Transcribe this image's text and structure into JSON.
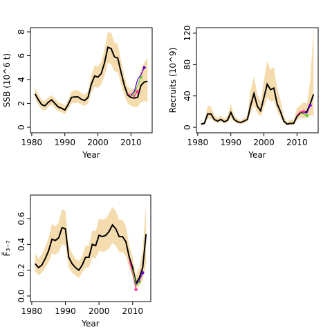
{
  "chart_data": [
    {
      "type": "line",
      "xlabel": "Year",
      "ylabel": "SSB (10^6 t)",
      "x": [
        1981,
        1982,
        1983,
        1984,
        1985,
        1986,
        1987,
        1988,
        1989,
        1990,
        1991,
        1992,
        1993,
        1994,
        1995,
        1996,
        1997,
        1998,
        1999,
        2000,
        2001,
        2002,
        2003,
        2004,
        2005,
        2006,
        2007,
        2008,
        2009,
        2010,
        2011,
        2012,
        2013,
        2014,
        2015
      ],
      "xlim": [
        1979.6,
        2016.4
      ],
      "xticks": [
        1980,
        1990,
        2000,
        2010
      ],
      "ylim": [
        -0.46,
        8.35
      ],
      "yticks": [
        0,
        2,
        4,
        6,
        8
      ],
      "band": {
        "color": "#f5dcae",
        "lower": [
          2.4,
          1.9,
          1.5,
          1.4,
          1.7,
          1.9,
          1.6,
          1.35,
          1.25,
          1.1,
          1.5,
          2.0,
          2.05,
          2.05,
          1.9,
          1.8,
          2.0,
          2.9,
          3.4,
          3.3,
          3.6,
          4.3,
          5.4,
          5.3,
          4.7,
          4.6,
          3.6,
          2.7,
          2.0,
          1.8,
          1.7,
          1.7,
          2.1,
          2.2,
          2.1
        ],
        "upper": [
          3.3,
          2.8,
          2.3,
          2.2,
          2.5,
          2.7,
          2.4,
          2.1,
          2.0,
          1.8,
          2.3,
          3.0,
          3.1,
          3.1,
          2.85,
          2.75,
          3.0,
          4.3,
          5.2,
          5.1,
          5.5,
          6.5,
          8.0,
          7.9,
          7.1,
          7.0,
          5.6,
          4.3,
          3.4,
          3.2,
          3.2,
          3.3,
          4.9,
          5.4,
          5.8
        ]
      },
      "series": [
        {
          "color": "#000000",
          "values": [
            2.8,
            2.3,
            1.9,
            1.8,
            2.1,
            2.3,
            2.0,
            1.7,
            1.6,
            1.45,
            1.9,
            2.5,
            2.55,
            2.55,
            2.35,
            2.25,
            2.5,
            3.6,
            4.3,
            4.2,
            4.5,
            5.4,
            6.7,
            6.6,
            5.9,
            5.8,
            4.6,
            3.5,
            2.7,
            2.5,
            2.45,
            2.5,
            3.5,
            3.8,
            3.85
          ]
        },
        {
          "color": "#ff3399",
          "x": [
            2009,
            2010,
            2011,
            2012
          ],
          "values": [
            2.8,
            2.7,
            2.6,
            3.0
          ]
        },
        {
          "color": "#66cc33",
          "x": [
            2010,
            2011,
            2012,
            2013
          ],
          "values": [
            2.6,
            2.8,
            3.5,
            4.2
          ]
        },
        {
          "color": "#6600cc",
          "x": [
            2010,
            2011,
            2012,
            2013,
            2014
          ],
          "values": [
            2.7,
            3.0,
            4.0,
            4.4,
            5.0
          ]
        }
      ]
    },
    {
      "type": "line",
      "xlabel": "Year",
      "ylabel": "Recruits (10^9)",
      "x": [
        1981,
        1982,
        1983,
        1984,
        1985,
        1986,
        1987,
        1988,
        1989,
        1990,
        1991,
        1992,
        1993,
        1994,
        1995,
        1996,
        1997,
        1998,
        1999,
        2000,
        2001,
        2002,
        2003,
        2004,
        2005,
        2006,
        2007,
        2008,
        2009,
        2010,
        2011,
        2012,
        2013,
        2014,
        2015
      ],
      "xlim": [
        1979.6,
        2016.4
      ],
      "xticks": [
        1980,
        1990,
        2000,
        2010
      ],
      "ylim": [
        -7,
        127
      ],
      "yticks": [
        0,
        40,
        80,
        120
      ],
      "band": {
        "color": "#f5dcae",
        "lower": [
          3,
          3.5,
          11,
          11,
          7,
          5.5,
          7,
          5,
          6,
          12,
          7,
          5,
          4,
          5.5,
          7,
          18,
          28,
          18,
          14,
          25,
          38,
          33,
          34,
          20,
          13,
          5,
          2.5,
          3,
          3,
          9,
          12,
          12,
          12,
          15,
          15
        ],
        "upper": [
          6,
          7,
          27,
          27,
          15,
          12,
          15,
          11,
          14,
          30,
          15,
          11,
          9,
          12,
          15,
          48,
          65,
          42,
          33,
          60,
          85,
          73,
          77,
          50,
          35,
          15,
          7,
          10,
          10,
          25,
          28,
          32,
          30,
          60,
          125
        ]
      },
      "series": [
        {
          "color": "#000000",
          "values": [
            4,
            5,
            17,
            17,
            10,
            8,
            10,
            7,
            9,
            19,
            10,
            7,
            6,
            8,
            10,
            28,
            43,
            27,
            21,
            38,
            55,
            48,
            50,
            30,
            20,
            8,
            4,
            5,
            5,
            14,
            18,
            19,
            20,
            30,
            42
          ]
        },
        {
          "color": "#ff3399",
          "x": [
            2010,
            2011,
            2012
          ],
          "values": [
            15,
            20,
            20
          ]
        },
        {
          "color": "#66cc33",
          "x": [
            2011,
            2012,
            2013
          ],
          "values": [
            18,
            17,
            15
          ]
        },
        {
          "color": "#6600cc",
          "x": [
            2012,
            2013,
            2014
          ],
          "values": [
            19,
            18,
            28
          ]
        }
      ]
    },
    {
      "type": "line",
      "xlabel": "Year",
      "ylabel": "F̄₃₋₇",
      "x": [
        1981,
        1982,
        1983,
        1984,
        1985,
        1986,
        1987,
        1988,
        1989,
        1990,
        1991,
        1992,
        1993,
        1994,
        1995,
        1996,
        1997,
        1998,
        1999,
        2000,
        2001,
        2002,
        2003,
        2004,
        2005,
        2006,
        2007,
        2008,
        2009,
        2010,
        2011,
        2012,
        2013,
        2014
      ],
      "xlim": [
        1979.6,
        2015.4
      ],
      "xticks": [
        1980,
        1990,
        2000,
        2010
      ],
      "ylim": [
        -0.043,
        0.782
      ],
      "yticks": [
        {
          "value": 0,
          "label": "0.0"
        },
        0.2,
        0.4,
        0.6
      ],
      "band": {
        "color": "#f5dcae",
        "lower": [
          0.19,
          0.16,
          0.18,
          0.22,
          0.26,
          0.33,
          0.32,
          0.34,
          0.4,
          0.39,
          0.22,
          0.18,
          0.16,
          0.14,
          0.18,
          0.22,
          0.22,
          0.3,
          0.29,
          0.35,
          0.34,
          0.35,
          0.37,
          0.41,
          0.39,
          0.34,
          0.34,
          0.31,
          0.22,
          0.15,
          0.06,
          0.08,
          0.12,
          0.25
        ],
        "upper": [
          0.33,
          0.29,
          0.32,
          0.38,
          0.45,
          0.56,
          0.54,
          0.57,
          0.67,
          0.66,
          0.39,
          0.33,
          0.29,
          0.27,
          0.31,
          0.39,
          0.39,
          0.51,
          0.5,
          0.6,
          0.59,
          0.6,
          0.64,
          0.69,
          0.66,
          0.59,
          0.59,
          0.54,
          0.39,
          0.3,
          0.16,
          0.22,
          0.36,
          0.72
        ]
      },
      "series": [
        {
          "color": "#000000",
          "values": [
            0.25,
            0.22,
            0.24,
            0.29,
            0.35,
            0.44,
            0.43,
            0.45,
            0.53,
            0.52,
            0.3,
            0.25,
            0.22,
            0.2,
            0.24,
            0.3,
            0.3,
            0.4,
            0.39,
            0.47,
            0.46,
            0.47,
            0.5,
            0.55,
            0.52,
            0.46,
            0.46,
            0.42,
            0.3,
            0.22,
            0.1,
            0.14,
            0.22,
            0.48
          ]
        },
        {
          "color": "#ff3399",
          "x": [
            2009,
            2010,
            2011
          ],
          "values": [
            0.28,
            0.18,
            0.05
          ]
        },
        {
          "color": "#66cc33",
          "x": [
            2010,
            2011,
            2012
          ],
          "values": [
            0.2,
            0.08,
            0.11
          ]
        },
        {
          "color": "#6600cc",
          "x": [
            2011,
            2012,
            2013
          ],
          "values": [
            0.09,
            0.12,
            0.18
          ]
        }
      ]
    }
  ]
}
